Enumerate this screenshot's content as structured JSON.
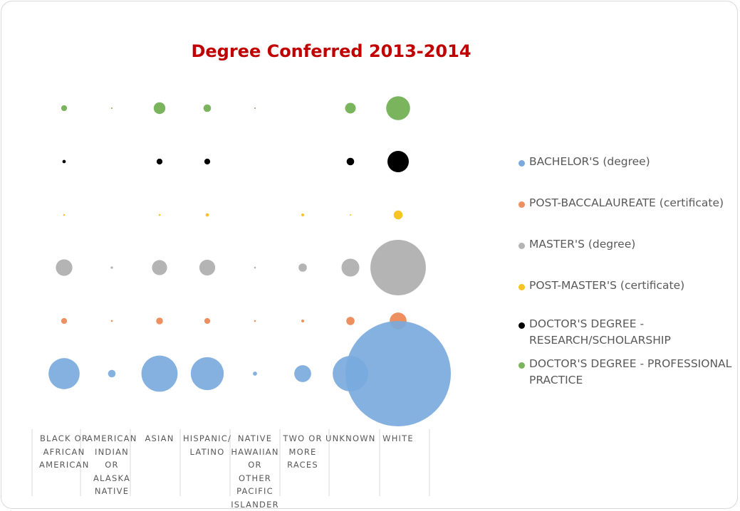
{
  "chart_data": {
    "type": "scatter",
    "title": "Degree Conferred 2013-2014",
    "categories": [
      "BLACK OR AFRICAN AMERICAN",
      "AMERICAN INDIAN OR ALASKA NATIVE",
      "ASIAN",
      "HISPANIC/ LATINO",
      "NATIVE HAWAIIAN OR OTHER PACIFIC ISLANDER",
      "TWO OR MORE RACES",
      "UNKNOWN",
      "WHITE"
    ],
    "value_encoding": "bubble area",
    "series": [
      {
        "name": "BACHELOR'S (degree)",
        "color": "#7aaadd",
        "values": [
          85,
          5,
          115,
          95,
          1.5,
          25,
          110,
          975
        ]
      },
      {
        "name": "POST-BACCALAUREATE (certificate)",
        "color": "#ed8f5e",
        "values": [
          3,
          0.3,
          4,
          3,
          0.3,
          0.7,
          6,
          25
        ]
      },
      {
        "name": "MASTER'S (degree)",
        "color": "#b4b4b4",
        "values": [
          24,
          0.5,
          20,
          22,
          0.3,
          6,
          28,
          270
        ]
      },
      {
        "name": "POST-MASTER'S (certificate)",
        "color": "#f7c423",
        "values": [
          0.3,
          0,
          0.3,
          1,
          0,
          0.7,
          0.2,
          7
        ]
      },
      {
        "name": "DOCTOR'S DEGREE - RESEARCH/SCHOLARSHIP",
        "color": "#000000",
        "values": [
          1,
          0,
          3,
          3,
          0,
          0,
          5,
          40
        ]
      },
      {
        "name": "DOCTOR'S DEGREE - PROFESSIONAL PRACTICE",
        "color": "#7ab55d",
        "values": [
          3,
          0.2,
          12,
          5,
          0.2,
          0,
          10,
          50
        ]
      }
    ],
    "legend_position": "right",
    "grid": false
  }
}
